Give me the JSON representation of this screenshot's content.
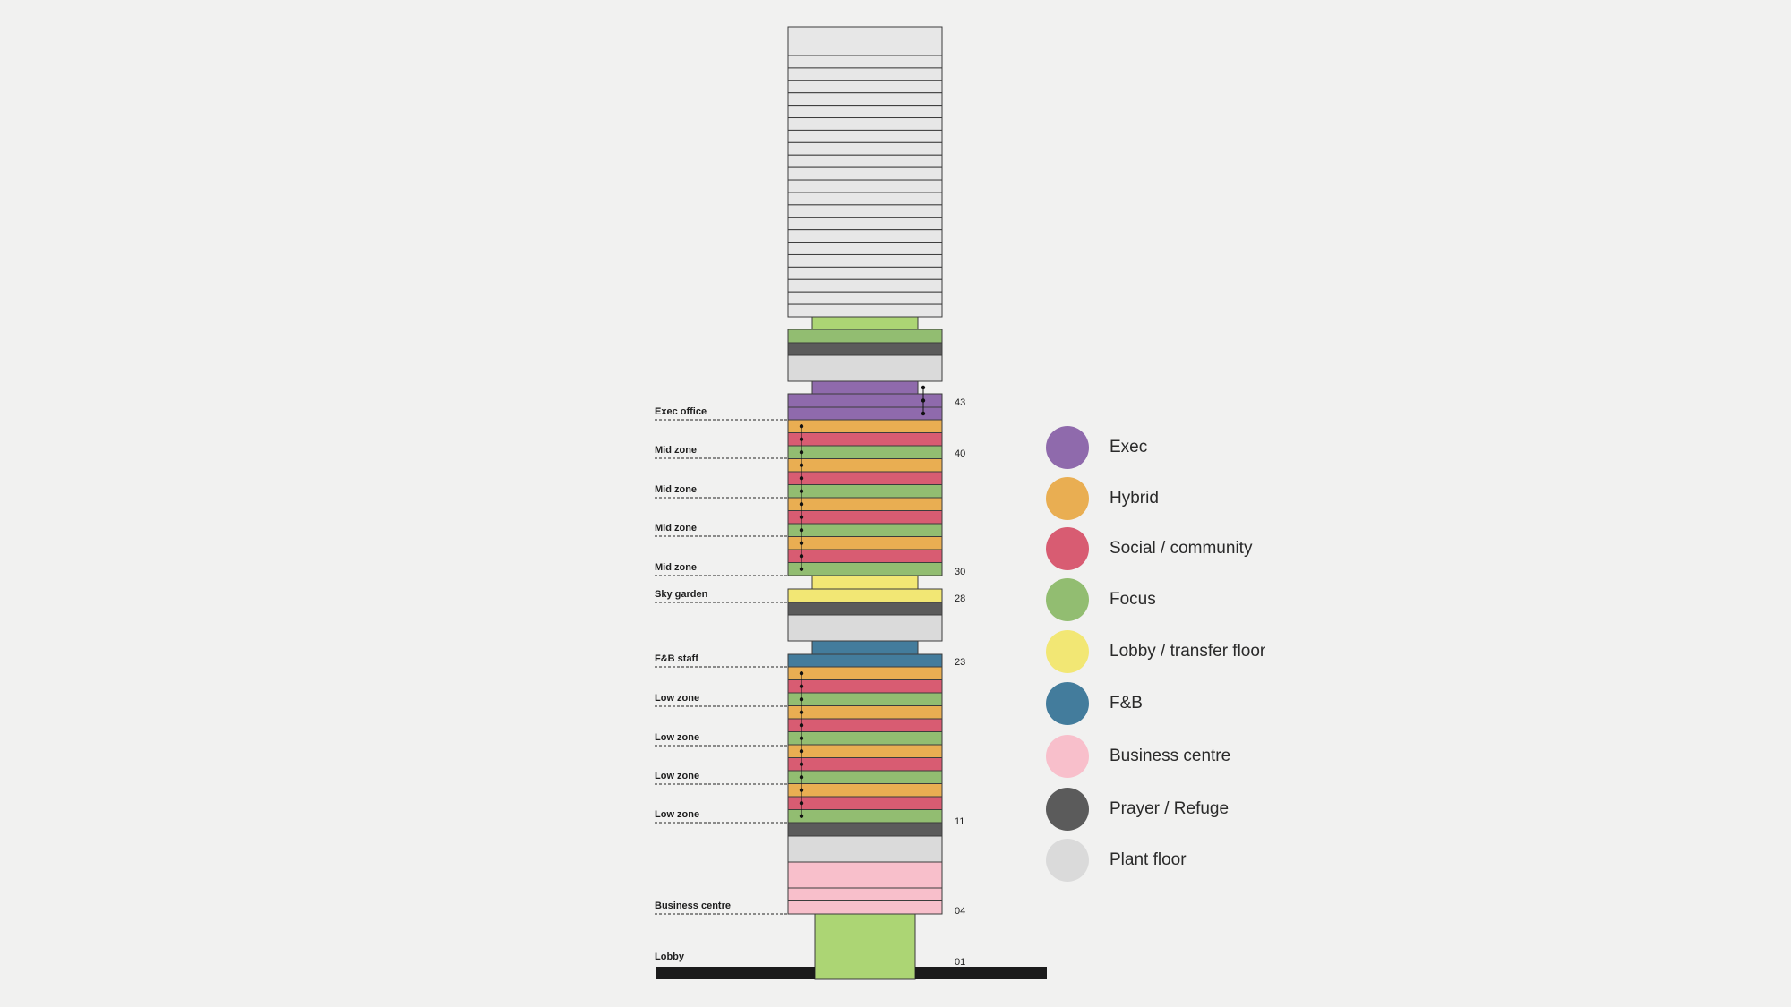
{
  "colors": {
    "exec": "#8f6aac",
    "hybrid": "#e9ae52",
    "social": "#d85c72",
    "focus": "#92bd71",
    "lobby": "#f2e774",
    "fnb": "#437c9c",
    "business": "#f8bfcb",
    "prayer": "#5b5b5b",
    "plant": "#dadada",
    "upper": "#e7e7e7",
    "lobby_green": "#acd574",
    "ground": "#1b1b1b"
  },
  "zone_labels": [
    {
      "id": "exec-office",
      "text": "Exec office"
    },
    {
      "id": "mid-zone-1",
      "text": "Mid zone"
    },
    {
      "id": "mid-zone-2",
      "text": "Mid zone"
    },
    {
      "id": "mid-zone-3",
      "text": "Mid zone"
    },
    {
      "id": "mid-zone-4",
      "text": "Mid zone"
    },
    {
      "id": "sky-garden",
      "text": "Sky garden"
    },
    {
      "id": "fnb-staff",
      "text": "F&B staff"
    },
    {
      "id": "low-zone-1",
      "text": "Low zone"
    },
    {
      "id": "low-zone-2",
      "text": "Low zone"
    },
    {
      "id": "low-zone-3",
      "text": "Low zone"
    },
    {
      "id": "low-zone-4",
      "text": "Low zone"
    },
    {
      "id": "business-centre",
      "text": "Business centre"
    },
    {
      "id": "lobby",
      "text": "Lobby"
    }
  ],
  "floor_numbers": [
    {
      "id": "floor-43",
      "text": "43"
    },
    {
      "id": "floor-40",
      "text": "40"
    },
    {
      "id": "floor-30",
      "text": "30"
    },
    {
      "id": "floor-28",
      "text": "28"
    },
    {
      "id": "floor-23",
      "text": "23"
    },
    {
      "id": "floor-11",
      "text": "11"
    },
    {
      "id": "floor-04",
      "text": "04"
    },
    {
      "id": "floor-01",
      "text": "01"
    }
  ],
  "legend": [
    {
      "id": "exec",
      "label": "Exec",
      "color": "#8f6aac"
    },
    {
      "id": "hybrid",
      "label": "Hybrid",
      "color": "#e9ae52"
    },
    {
      "id": "social-community",
      "label": "Social / community",
      "color": "#d85c72"
    },
    {
      "id": "focus",
      "label": "Focus",
      "color": "#92bd71"
    },
    {
      "id": "lobby-transfer-floor",
      "label": "Lobby / transfer floor",
      "color": "#f2e774"
    },
    {
      "id": "fnb",
      "label": "F&B",
      "color": "#437c9c"
    },
    {
      "id": "business-centre",
      "label": "Business centre",
      "color": "#f8bfcb"
    },
    {
      "id": "prayer-refuge",
      "label": "Prayer / Refuge",
      "color": "#5b5b5b"
    },
    {
      "id": "plant-floor",
      "label": "Plant floor",
      "color": "#dadada"
    }
  ]
}
